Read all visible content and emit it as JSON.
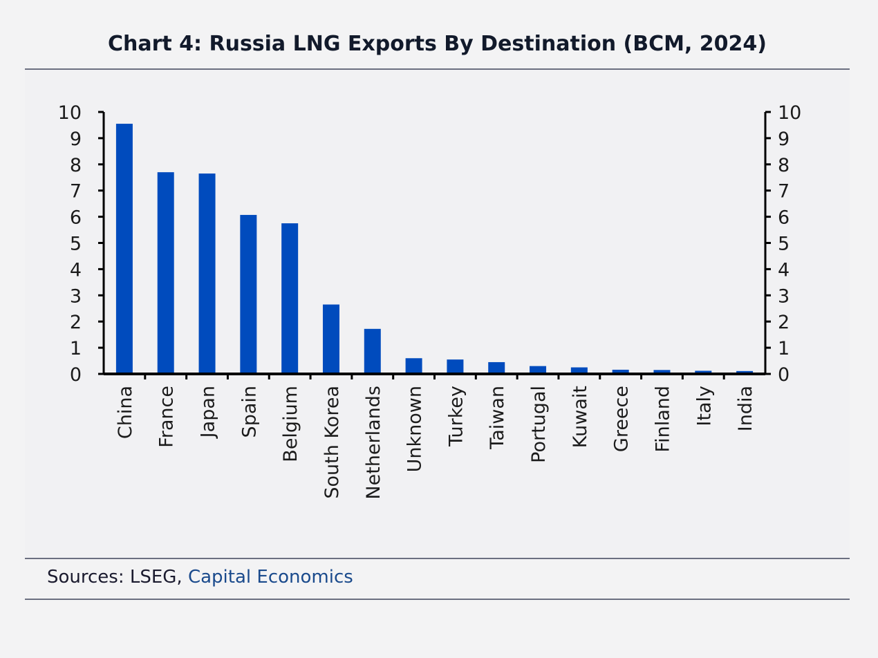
{
  "title": "Chart 4: Russia LNG Exports By Destination (BCM, 2024)",
  "source": {
    "prefix": "Sources: LSEG, ",
    "brand": "Capital Economics"
  },
  "colors": {
    "bar": "#004bbd",
    "axis": "#000000"
  },
  "chart_data": {
    "type": "bar",
    "title": "Chart 4: Russia LNG Exports By Destination (BCM, 2024)",
    "categories": [
      "China",
      "France",
      "Japan",
      "Spain",
      "Belgium",
      "South Korea",
      "Netherlands",
      "Unknown",
      "Turkey",
      "Taiwan",
      "Portugal",
      "Kuwait",
      "Greece",
      "Finland",
      "Italy",
      "India"
    ],
    "values": [
      9.55,
      7.7,
      7.65,
      6.07,
      5.75,
      2.65,
      1.72,
      0.6,
      0.55,
      0.45,
      0.3,
      0.25,
      0.16,
      0.15,
      0.12,
      0.11
    ],
    "ylim": [
      0,
      10
    ],
    "yticks": [
      0,
      1,
      2,
      3,
      4,
      5,
      6,
      7,
      8,
      9,
      10
    ],
    "secondary_axis": true,
    "grid": false,
    "xlabel": "",
    "ylabel": ""
  }
}
